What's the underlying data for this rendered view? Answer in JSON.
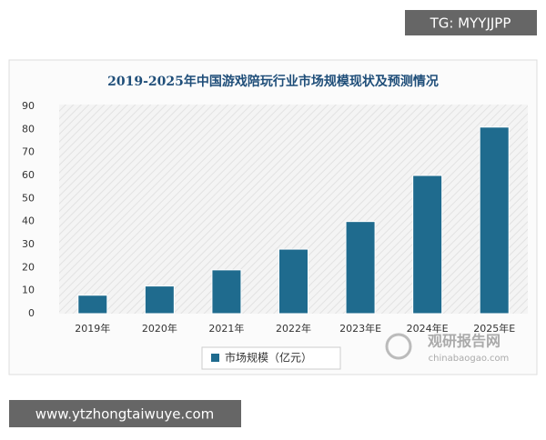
{
  "chart_data": {
    "type": "bar",
    "title": "2019-2025年中国游戏陪玩行业市场规模现状及预测情况",
    "categories": [
      "2019年",
      "2020年",
      "2021年",
      "2022年",
      "2023年E",
      "2024年E",
      "2025年E"
    ],
    "series": [
      {
        "name": "市场规模（亿元）",
        "color": "#1f6b8e",
        "values": [
          8,
          12,
          19,
          28,
          40,
          60,
          81
        ]
      }
    ],
    "ylim": [
      0,
      90
    ],
    "yticks": [
      0,
      10,
      20,
      30,
      40,
      50,
      60,
      70,
      80,
      90
    ]
  },
  "watermarks": {
    "tg": "TG: MYYJJPP",
    "site": "www.ytzhongtaiwuye.com",
    "brand": "观研报告网",
    "brand_url": "chinabaogao.com"
  }
}
